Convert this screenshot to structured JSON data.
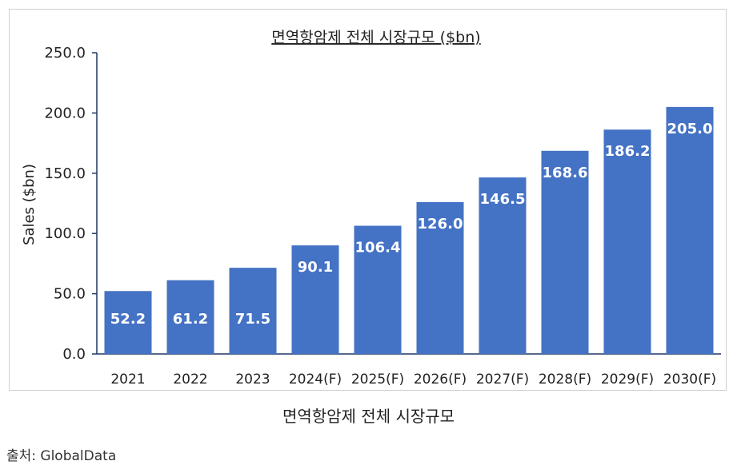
{
  "chart_data": {
    "type": "bar",
    "title": "면역항암제 전체 시장규모 ($bn)",
    "ylabel": "Sales ($bn)",
    "xlabel": "",
    "ylim": [
      0,
      250
    ],
    "yticks": [
      "0.0",
      "50.0",
      "100.0",
      "150.0",
      "200.0",
      "250.0"
    ],
    "categories": [
      "2021",
      "2022",
      "2023",
      "2024(F)",
      "2025(F)",
      "2026(F)",
      "2027(F)",
      "2028(F)",
      "2029(F)",
      "2030(F)"
    ],
    "values": [
      52.2,
      61.2,
      71.5,
      90.1,
      106.4,
      126.0,
      146.5,
      168.6,
      186.2,
      205.0
    ],
    "data_labels": [
      "52.2",
      "61.2",
      "71.5",
      "90.1",
      "106.4",
      "126.0",
      "146.5",
      "168.6",
      "186.2",
      "205.0"
    ],
    "bar_color": "#4472C4",
    "grid": false,
    "legend": "none"
  },
  "caption": "면역항암제 전체 시장규모",
  "source": "출처: GlobalData"
}
